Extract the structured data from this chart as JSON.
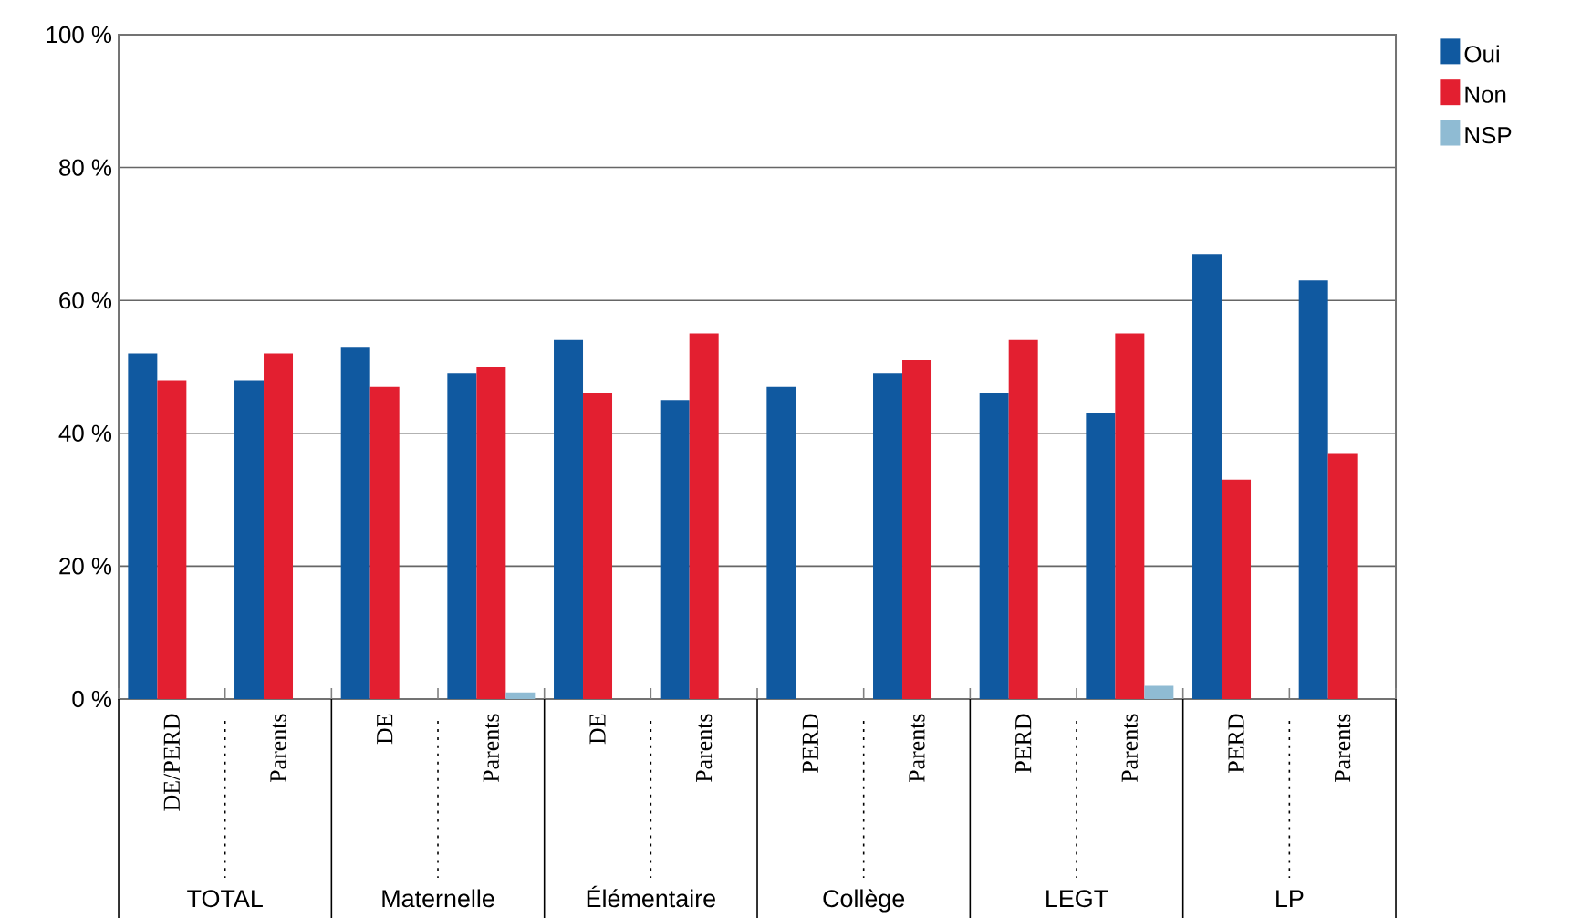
{
  "chart_data": {
    "type": "bar",
    "categories": [
      "DE/PERD",
      "Parents",
      "DE",
      "Parents",
      "DE",
      "Parents",
      "PERD",
      "Parents",
      "PERD",
      "Parents",
      "PERD",
      "Parents"
    ],
    "series": [
      {
        "name": "Oui",
        "color": "#1059a0",
        "values": [
          52,
          48,
          53,
          49,
          54,
          45,
          47,
          49,
          46,
          43,
          67,
          63
        ]
      },
      {
        "name": "Non",
        "color": "#e31f30",
        "values": [
          48,
          52,
          47,
          50,
          46,
          55,
          null,
          51,
          54,
          55,
          33,
          37
        ]
      },
      {
        "name": "NSP",
        "color": "#8fbbd3",
        "values": [
          null,
          null,
          null,
          1,
          null,
          null,
          null,
          null,
          null,
          2,
          null,
          null
        ]
      }
    ],
    "annotations": [
      "TOTAL",
      "Maternelle",
      "Élémentaire",
      "Collège",
      "LEGT",
      "LP"
    ],
    "ylim": [
      0,
      100
    ],
    "yticks": [
      {
        "value": 0,
        "label": "0 %"
      },
      {
        "value": 20,
        "label": "20 %"
      },
      {
        "value": 40,
        "label": "40 %"
      },
      {
        "value": 60,
        "label": "60 %"
      },
      {
        "value": 80,
        "label": "80 %"
      },
      {
        "value": 100,
        "label": "100 %"
      }
    ],
    "grid": "y",
    "legend": "top right"
  }
}
